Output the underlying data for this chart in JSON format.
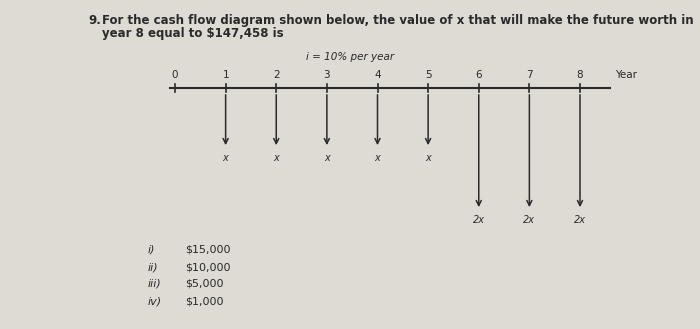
{
  "question_number": "9.",
  "question_text": "For the cash flow diagram shown below, the value of x that will make the future worth in\nyear 8 equal to $147,458 is",
  "interest_label": "i = 10% per year",
  "year_label": "Year",
  "years": [
    0,
    1,
    2,
    3,
    4,
    5,
    6,
    7,
    8
  ],
  "small_arrows": [
    1,
    2,
    3,
    4,
    5
  ],
  "large_arrows": [
    6,
    7,
    8
  ],
  "small_label": "x",
  "large_label": "2x",
  "answer_choices_roman": [
    "i)",
    "ii)",
    "iii)",
    "iv)"
  ],
  "answer_choices_values": [
    "$15,000",
    "$10,000",
    "$5,000",
    "$1,000"
  ],
  "background_color": "#dedad4",
  "text_color": "#2a2a2a",
  "axis_color": "#2a2a2a",
  "arrow_color": "#2a2a2a",
  "font_size_question": 8.5,
  "font_size_labels": 7.5,
  "font_size_answers": 8.0
}
